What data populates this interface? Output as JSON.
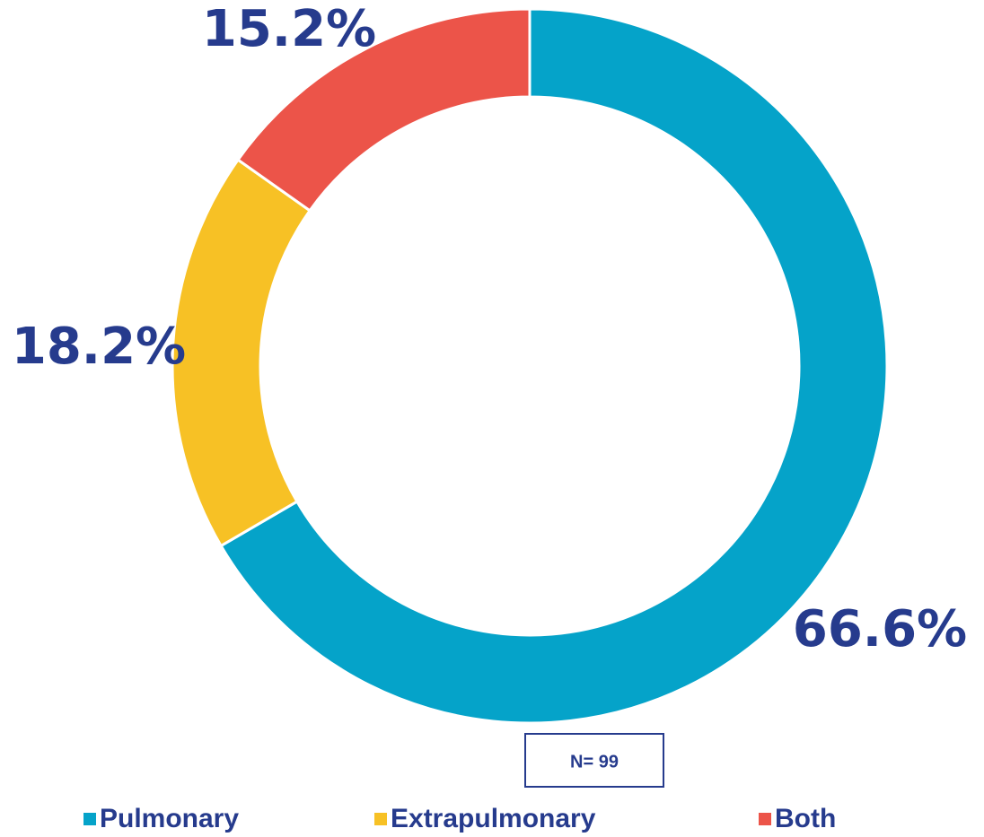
{
  "chart_data": {
    "type": "donut",
    "categories": [
      "Pulmonary",
      "Extrapulmonary",
      "Both"
    ],
    "values": [
      66.6,
      18.2,
      15.2
    ],
    "value_labels": [
      "66.6%",
      "18.2%",
      "15.2%"
    ],
    "colors": [
      "#05a3c9",
      "#f7c125",
      "#ec5449"
    ],
    "annotation": "N= 99",
    "legend": "bottom"
  }
}
